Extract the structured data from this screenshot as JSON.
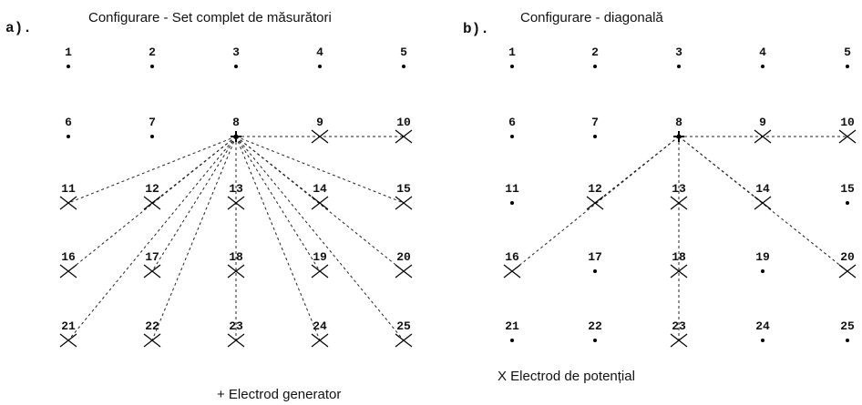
{
  "panels": [
    {
      "tag": "a).",
      "title": "Configurare - Set complet de măsurători",
      "nodes": [
        "1",
        "2",
        "3",
        "4",
        "5",
        "6",
        "7",
        "8",
        "9",
        "10",
        "11",
        "12",
        "13",
        "14",
        "15",
        "16",
        "17",
        "18",
        "19",
        "20",
        "21",
        "22",
        "23",
        "24",
        "25"
      ]
    },
    {
      "tag": "b).",
      "title": "Configurare - diagonală",
      "nodes": [
        "1",
        "2",
        "3",
        "4",
        "5",
        "6",
        "7",
        "8",
        "9",
        "10",
        "11",
        "12",
        "13",
        "14",
        "15",
        "16",
        "17",
        "18",
        "19",
        "20",
        "21",
        "22",
        "23",
        "24",
        "25"
      ]
    }
  ],
  "legend": {
    "generator": "+ Electrod generator",
    "potential": "X Electrod de potențial"
  }
}
